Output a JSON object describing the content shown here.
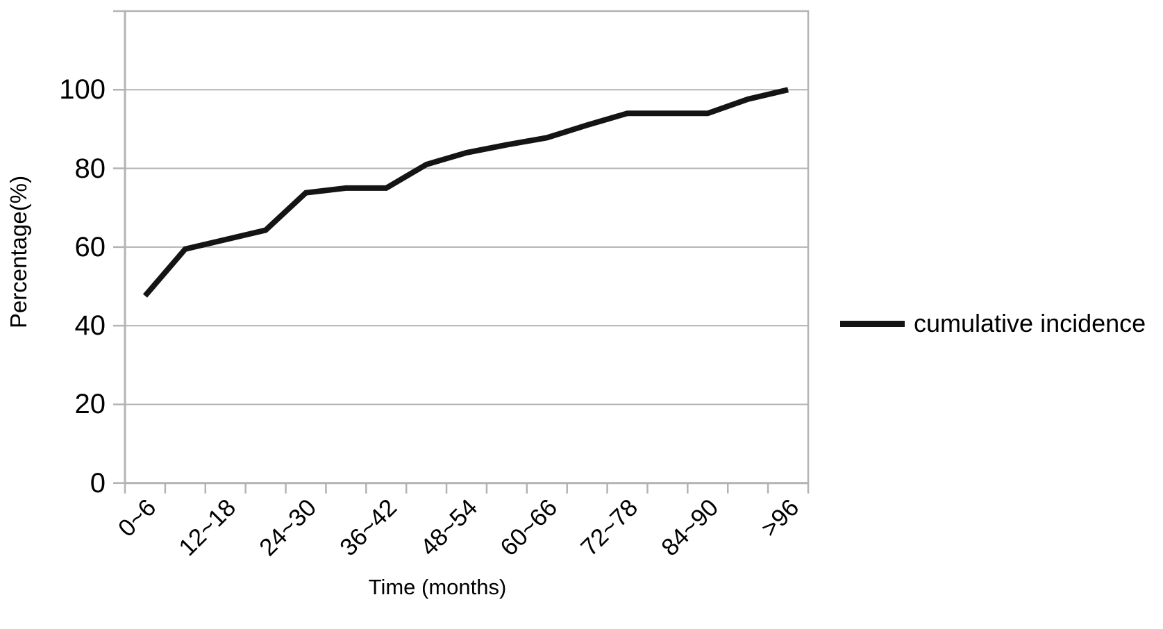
{
  "chart_data": {
    "type": "line",
    "title": "",
    "ylabel": "Percentage(%)",
    "xlabel": "Time (months)",
    "ylim": [
      0,
      120
    ],
    "y_ticks": [
      0,
      20,
      40,
      60,
      80,
      100
    ],
    "x_tick_labels": [
      "0~6",
      "12~18",
      "24~30",
      "36~42",
      "48~54",
      "60~66",
      "72~78",
      "84~90",
      ">96"
    ],
    "categories": [
      "0~6",
      "6~12",
      "12~18",
      "18~24",
      "24~30",
      "30~36",
      "36~42",
      "42~48",
      "48~54",
      "54~60",
      "60~66",
      "66~72",
      "72~78",
      "78~84",
      "84~90",
      "90~96",
      ">96"
    ],
    "series": [
      {
        "name": "cumulative incidence",
        "values": [
          47.6,
          59.5,
          61.9,
          64.3,
          73.8,
          75.0,
          75.0,
          81.0,
          84.0,
          86.0,
          87.8,
          91.0,
          94.0,
          94.0,
          94.0,
          97.6,
          100.0
        ]
      }
    ],
    "grid": "horizontal gridlines at each labeled y tick",
    "legend_position": "right-middle",
    "colors": {
      "line": "#141414",
      "grid": "#b3b3b3",
      "text": "#000000",
      "background": "#ffffff"
    }
  }
}
